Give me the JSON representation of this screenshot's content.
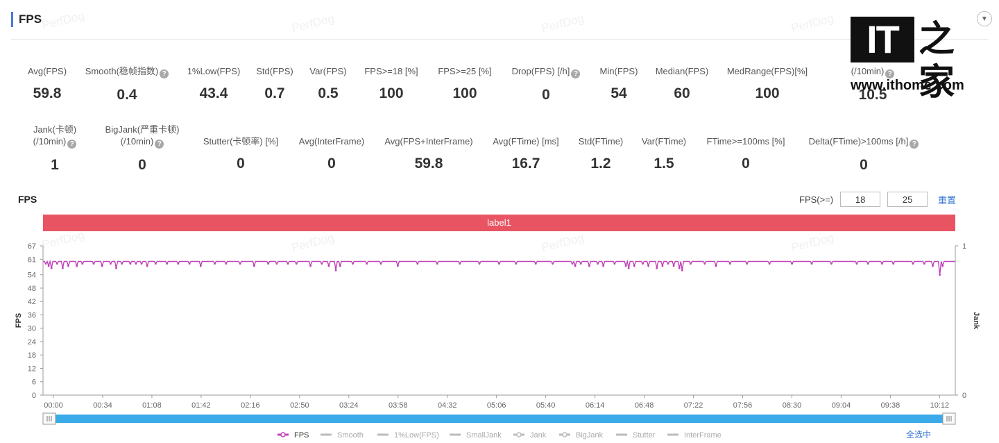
{
  "header": {
    "title": "FPS"
  },
  "watermark": "PerfDog",
  "logo": {
    "it": "IT",
    "cn": "之家",
    "url": "www.ithome.com"
  },
  "metrics_row1": [
    {
      "label": "Avg(FPS)",
      "value": "59.8",
      "help": false
    },
    {
      "label": "Smooth(稳帧指数)",
      "value": "0.4",
      "help": true
    },
    {
      "label": "1%Low(FPS)",
      "value": "43.4",
      "help": false
    },
    {
      "label": "Std(FPS)",
      "value": "0.7",
      "help": false
    },
    {
      "label": "Var(FPS)",
      "value": "0.5",
      "help": false
    },
    {
      "label": "FPS>=18 [%]",
      "value": "100",
      "help": false
    },
    {
      "label": "FPS>=25 [%]",
      "value": "100",
      "help": false
    },
    {
      "label": "Drop(FPS) [/h]",
      "value": "0",
      "help": true
    },
    {
      "label": "Min(FPS)",
      "value": "54",
      "help": false
    },
    {
      "label": "Median(FPS)",
      "value": "60",
      "help": false
    },
    {
      "label": "MedRange(FPS)[%]",
      "value": "100",
      "help": false
    },
    {
      "label": "SmallJank",
      "label2": "(/10min)",
      "value": "10.5",
      "help": true
    }
  ],
  "metrics_row2": [
    {
      "label": "Jank(卡顿)",
      "label2": "(/10min)",
      "value": "1",
      "help": true
    },
    {
      "label": "BigJank(严重卡顿)",
      "label2": "(/10min)",
      "value": "0",
      "help": true
    },
    {
      "label": "Stutter(卡顿率) [%]",
      "value": "0",
      "help": false
    },
    {
      "label": "Avg(InterFrame)",
      "value": "0",
      "help": false
    },
    {
      "label": "Avg(FPS+InterFrame)",
      "value": "59.8",
      "help": false
    },
    {
      "label": "Avg(FTime) [ms]",
      "value": "16.7",
      "help": false
    },
    {
      "label": "Std(FTime)",
      "value": "1.2",
      "help": false
    },
    {
      "label": "Var(FTime)",
      "value": "1.5",
      "help": false
    },
    {
      "label": "FTime>=100ms [%]",
      "value": "0",
      "help": false
    },
    {
      "label": "Delta(FTime)>100ms [/h]",
      "value": "0",
      "help": true
    }
  ],
  "chart_section": {
    "title": "FPS",
    "filter_label": "FPS(>=)",
    "threshold1": "18",
    "threshold2": "25",
    "reset_label": "重置",
    "label_band": "label1",
    "select_all": "全选中"
  },
  "colors": {
    "fps_line": "#c042b8",
    "label_band": "#e85462",
    "scrollbar": "#3aaae8",
    "link": "#3a7bd5"
  },
  "chart_data": {
    "type": "line",
    "ylabel": "FPS",
    "y2label": "Jank",
    "yticks": [
      0,
      6,
      12,
      18,
      24,
      30,
      36,
      42,
      48,
      54,
      61,
      67
    ],
    "ylim": [
      0,
      67
    ],
    "y2ticks": [
      0,
      1
    ],
    "xticks": [
      "00:00",
      "00:34",
      "01:08",
      "01:42",
      "02:16",
      "02:50",
      "03:24",
      "03:58",
      "04:32",
      "05:06",
      "05:40",
      "06:14",
      "06:48",
      "07:22",
      "07:56",
      "08:30",
      "09:04",
      "09:38",
      "10:12"
    ],
    "duration_seconds": 648,
    "baseline_fps": 60,
    "dips": [
      [
        2,
        59
      ],
      [
        4,
        58
      ],
      [
        6,
        57
      ],
      [
        10,
        59
      ],
      [
        14,
        57
      ],
      [
        18,
        58
      ],
      [
        24,
        58
      ],
      [
        28,
        59
      ],
      [
        36,
        59
      ],
      [
        42,
        58
      ],
      [
        48,
        59
      ],
      [
        52,
        57
      ],
      [
        56,
        59
      ],
      [
        62,
        59
      ],
      [
        66,
        59
      ],
      [
        70,
        59
      ],
      [
        74,
        58
      ],
      [
        80,
        59
      ],
      [
        88,
        59
      ],
      [
        96,
        59
      ],
      [
        104,
        59
      ],
      [
        112,
        58
      ],
      [
        122,
        59
      ],
      [
        130,
        59
      ],
      [
        140,
        59
      ],
      [
        150,
        58
      ],
      [
        160,
        59
      ],
      [
        166,
        59
      ],
      [
        174,
        59
      ],
      [
        180,
        59
      ],
      [
        190,
        58
      ],
      [
        198,
        59
      ],
      [
        203,
        58
      ],
      [
        208,
        56
      ],
      [
        211,
        58
      ],
      [
        220,
        59
      ],
      [
        230,
        59
      ],
      [
        240,
        59
      ],
      [
        252,
        58
      ],
      [
        266,
        59
      ],
      [
        280,
        59
      ],
      [
        296,
        59
      ],
      [
        310,
        59
      ],
      [
        324,
        59
      ],
      [
        336,
        59
      ],
      [
        350,
        59
      ],
      [
        362,
        59
      ],
      [
        376,
        59
      ],
      [
        378,
        58
      ],
      [
        382,
        59
      ],
      [
        388,
        58
      ],
      [
        394,
        59
      ],
      [
        398,
        58
      ],
      [
        406,
        59
      ],
      [
        414,
        58
      ],
      [
        416,
        57
      ],
      [
        420,
        58
      ],
      [
        426,
        59
      ],
      [
        430,
        58
      ],
      [
        436,
        57
      ],
      [
        440,
        58
      ],
      [
        444,
        59
      ],
      [
        448,
        58
      ],
      [
        452,
        57
      ],
      [
        454,
        56
      ],
      [
        460,
        59
      ],
      [
        470,
        59
      ],
      [
        478,
        58
      ],
      [
        488,
        59
      ],
      [
        500,
        59
      ],
      [
        516,
        59
      ],
      [
        532,
        59
      ],
      [
        546,
        59
      ],
      [
        560,
        59
      ],
      [
        578,
        59
      ],
      [
        586,
        59
      ],
      [
        596,
        59
      ],
      [
        604,
        59
      ],
      [
        618,
        59
      ],
      [
        626,
        59
      ],
      [
        632,
        58
      ],
      [
        637,
        54
      ],
      [
        639,
        58
      ]
    ],
    "legend": [
      "FPS",
      "Smooth",
      "1%Low(FPS)",
      "SmallJank",
      "Jank",
      "BigJank",
      "Stutter",
      "InterFrame"
    ]
  }
}
